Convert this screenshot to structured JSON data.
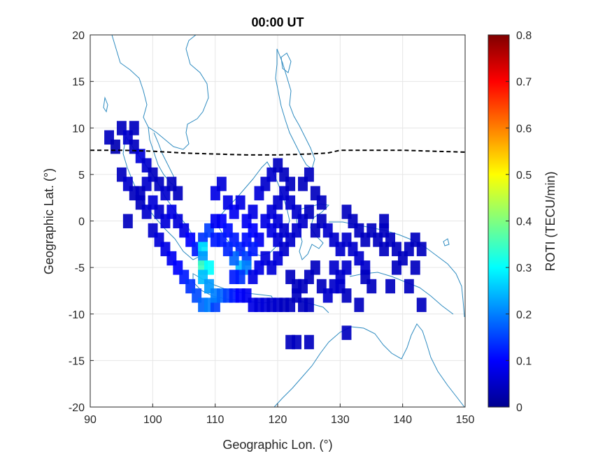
{
  "chart_data": {
    "type": "heatmap",
    "title": "00:00 UT",
    "xlabel": "Geographic Lon. (°)",
    "ylabel": "Geographic Lat. (°)",
    "xlim": [
      90,
      150
    ],
    "ylim": [
      -20,
      20
    ],
    "xticks": [
      "90",
      "100",
      "110",
      "120",
      "130",
      "140",
      "150"
    ],
    "yticks": [
      "20",
      "15",
      "10",
      "5",
      "0",
      "-5",
      "-10",
      "-15",
      "-20"
    ],
    "grid": true,
    "colorbar": {
      "label": "ROTI (TECU/min)",
      "min": 0,
      "max": 0.8,
      "ticks": [
        "0.8",
        "0.7",
        "0.6",
        "0.5",
        "0.4",
        "0.3",
        "0.2",
        "0.1",
        "0"
      ],
      "colormap": "jet"
    },
    "magnetic_equator": {
      "style": "dashed",
      "color": "#000000",
      "lon": [
        90,
        95,
        100,
        105,
        110,
        115,
        120,
        125,
        128,
        130,
        133,
        135,
        140,
        145,
        150
      ],
      "lat": [
        7.6,
        7.6,
        7.5,
        7.3,
        7.2,
        7.1,
        7.1,
        7.2,
        7.3,
        7.6,
        7.6,
        7.6,
        7.6,
        7.5,
        7.4
      ]
    },
    "coastline_color": "#2e8bc0",
    "cell_size_deg": [
      1.5,
      1.5
    ],
    "cells": [
      [
        93,
        9,
        0.05
      ],
      [
        94,
        8,
        0.04
      ],
      [
        95,
        10,
        0.05
      ],
      [
        96,
        9,
        0.06
      ],
      [
        97,
        8,
        0.05
      ],
      [
        98,
        7,
        0.07
      ],
      [
        99,
        6,
        0.06
      ],
      [
        97,
        10,
        0.05
      ],
      [
        100,
        5,
        0.05
      ],
      [
        101,
        4,
        0.05
      ],
      [
        102,
        3,
        0.06
      ],
      [
        103,
        4,
        0.05
      ],
      [
        104,
        3,
        0.05
      ],
      [
        99,
        4,
        0.06
      ],
      [
        98,
        3,
        0.05
      ],
      [
        100,
        2,
        0.07
      ],
      [
        101,
        1,
        0.06
      ],
      [
        102,
        0,
        0.07
      ],
      [
        103,
        1,
        0.08
      ],
      [
        104,
        0,
        0.07
      ],
      [
        105,
        -1,
        0.08
      ],
      [
        106,
        -2,
        0.1
      ],
      [
        107,
        -3,
        0.12
      ],
      [
        108,
        -2,
        0.14
      ],
      [
        108,
        -3,
        0.28
      ],
      [
        109,
        -1,
        0.15
      ],
      [
        110,
        -2,
        0.12
      ],
      [
        95,
        5,
        0.05
      ],
      [
        96,
        4,
        0.06
      ],
      [
        97,
        3,
        0.05
      ],
      [
        98,
        2,
        0.05
      ],
      [
        99,
        1,
        0.06
      ],
      [
        96,
        0,
        0.05
      ],
      [
        100,
        -1,
        0.06
      ],
      [
        101,
        -2,
        0.07
      ],
      [
        102,
        -3,
        0.08
      ],
      [
        103,
        -4,
        0.09
      ],
      [
        104,
        -5,
        0.1
      ],
      [
        105,
        -6,
        0.12
      ],
      [
        106,
        -7,
        0.14
      ],
      [
        107,
        -8,
        0.16
      ],
      [
        108,
        -9,
        0.18
      ],
      [
        109,
        -9,
        0.2
      ],
      [
        110,
        -9,
        0.15
      ],
      [
        108,
        -4,
        0.22
      ],
      [
        108,
        -5,
        0.35
      ],
      [
        109,
        -5,
        0.3
      ],
      [
        108,
        -6,
        0.25
      ],
      [
        109,
        -7,
        0.22
      ],
      [
        110,
        -8,
        0.2
      ],
      [
        111,
        -8,
        0.18
      ],
      [
        112,
        -8,
        0.15
      ],
      [
        113,
        -8,
        0.12
      ],
      [
        114,
        -8,
        0.1
      ],
      [
        115,
        -8,
        0.09
      ],
      [
        116,
        -9,
        0.08
      ],
      [
        117,
        -9,
        0.07
      ],
      [
        118,
        -9,
        0.07
      ],
      [
        119,
        -9,
        0.06
      ],
      [
        120,
        -9,
        0.06
      ],
      [
        121,
        -9,
        0.05
      ],
      [
        122,
        -9,
        0.05
      ],
      [
        123,
        -8,
        0.05
      ],
      [
        124,
        -9,
        0.05
      ],
      [
        125,
        -9,
        0.05
      ],
      [
        111,
        0,
        0.1
      ],
      [
        112,
        -1,
        0.11
      ],
      [
        113,
        -2,
        0.12
      ],
      [
        114,
        -3,
        0.13
      ],
      [
        115,
        -4,
        0.15
      ],
      [
        114,
        -5,
        0.25
      ],
      [
        115,
        -5,
        0.2
      ],
      [
        113,
        -4,
        0.18
      ],
      [
        112,
        -3,
        0.13
      ],
      [
        111,
        -2,
        0.12
      ],
      [
        110,
        0,
        0.09
      ],
      [
        110,
        3,
        0.08
      ],
      [
        111,
        4,
        0.07
      ],
      [
        112,
        2,
        0.08
      ],
      [
        113,
        1,
        0.09
      ],
      [
        114,
        2,
        0.08
      ],
      [
        115,
        0,
        0.09
      ],
      [
        116,
        -1,
        0.1
      ],
      [
        117,
        -2,
        0.09
      ],
      [
        116,
        1,
        0.08
      ],
      [
        117,
        3,
        0.07
      ],
      [
        118,
        0,
        0.08
      ],
      [
        119,
        -1,
        0.08
      ],
      [
        120,
        -2,
        0.07
      ],
      [
        119,
        1,
        0.07
      ],
      [
        120,
        2,
        0.06
      ],
      [
        121,
        3,
        0.06
      ],
      [
        122,
        4,
        0.05
      ],
      [
        118,
        4,
        0.06
      ],
      [
        119,
        5,
        0.06
      ],
      [
        120,
        6,
        0.05
      ],
      [
        121,
        5,
        0.05
      ],
      [
        122,
        2,
        0.06
      ],
      [
        123,
        1,
        0.06
      ],
      [
        124,
        0,
        0.06
      ],
      [
        123,
        -1,
        0.06
      ],
      [
        122,
        -2,
        0.06
      ],
      [
        121,
        -3,
        0.06
      ],
      [
        120,
        -4,
        0.07
      ],
      [
        119,
        -5,
        0.07
      ],
      [
        118,
        -4,
        0.07
      ],
      [
        117,
        -5,
        0.08
      ],
      [
        116,
        -6,
        0.08
      ],
      [
        124,
        4,
        0.05
      ],
      [
        125,
        5,
        0.05
      ],
      [
        126,
        3,
        0.05
      ],
      [
        127,
        2,
        0.05
      ],
      [
        125,
        1,
        0.05
      ],
      [
        126,
        -1,
        0.05
      ],
      [
        127,
        0,
        0.05
      ],
      [
        128,
        -1,
        0.06
      ],
      [
        129,
        -2,
        0.06
      ],
      [
        130,
        -3,
        0.06
      ],
      [
        131,
        -2,
        0.06
      ],
      [
        132,
        -3,
        0.06
      ],
      [
        133,
        -4,
        0.06
      ],
      [
        134,
        -5,
        0.06
      ],
      [
        131,
        -5,
        0.06
      ],
      [
        130,
        -6,
        0.06
      ],
      [
        129,
        -5,
        0.06
      ],
      [
        122,
        -6,
        0.05
      ],
      [
        123,
        -7,
        0.05
      ],
      [
        124,
        -7,
        0.05
      ],
      [
        125,
        -6,
        0.05
      ],
      [
        126,
        -5,
        0.05
      ],
      [
        127,
        -7,
        0.05
      ],
      [
        128,
        -8,
        0.06
      ],
      [
        129,
        -7,
        0.06
      ],
      [
        130,
        -7,
        0.06
      ],
      [
        131,
        1,
        0.05
      ],
      [
        132,
        0,
        0.05
      ],
      [
        133,
        -1,
        0.05
      ],
      [
        134,
        -2,
        0.05
      ],
      [
        135,
        -1,
        0.05
      ],
      [
        136,
        -2,
        0.05
      ],
      [
        137,
        -1,
        0.05
      ],
      [
        137,
        -3,
        0.05
      ],
      [
        138,
        -2,
        0.05
      ],
      [
        139,
        -3,
        0.05
      ],
      [
        134,
        -6,
        0.05
      ],
      [
        135,
        -7,
        0.05
      ],
      [
        137,
        0,
        0.05
      ],
      [
        141,
        -3,
        0.05
      ],
      [
        142,
        -2,
        0.05
      ],
      [
        143,
        -3,
        0.05
      ],
      [
        140,
        -4,
        0.05
      ],
      [
        139,
        -5,
        0.05
      ],
      [
        142,
        -5,
        0.05
      ],
      [
        138,
        -7,
        0.05
      ],
      [
        133,
        -9,
        0.05
      ],
      [
        131,
        -8,
        0.05
      ],
      [
        143,
        -9,
        0.05
      ],
      [
        141,
        -7,
        0.05
      ],
      [
        131,
        -12,
        0.05
      ],
      [
        122,
        -13,
        0.05
      ],
      [
        123,
        -13,
        0.05
      ],
      [
        125,
        -13,
        0.05
      ],
      [
        120,
        0,
        0.07
      ],
      [
        121,
        -1,
        0.06
      ],
      [
        115,
        -2,
        0.11
      ],
      [
        116,
        -3,
        0.12
      ],
      [
        114,
        -6,
        0.14
      ],
      [
        113,
        -6,
        0.12
      ]
    ]
  }
}
